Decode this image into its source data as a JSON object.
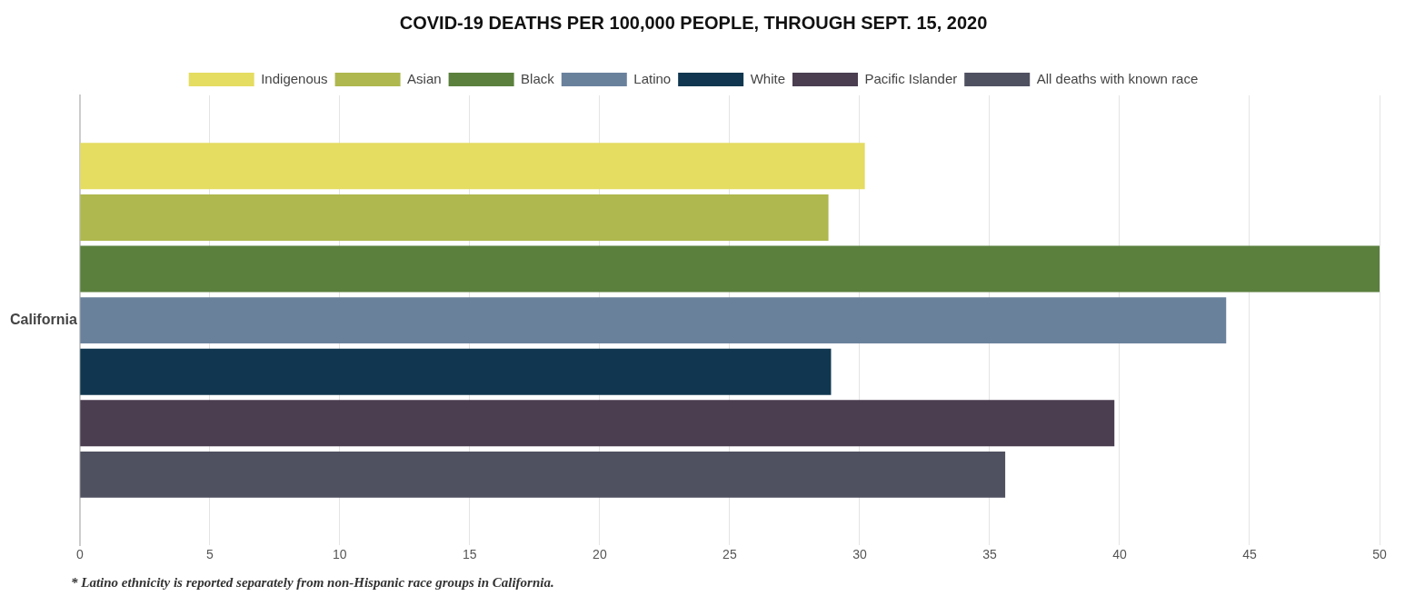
{
  "chart_data": {
    "type": "bar",
    "orientation": "horizontal",
    "title": "COVID-19 DEATHS PER 100,000 PEOPLE, THROUGH SEPT. 15, 2020",
    "categories": [
      "California"
    ],
    "series": [
      {
        "name": "Indigenous",
        "color": "#e5dc62",
        "values": [
          30.2
        ]
      },
      {
        "name": "Asian",
        "color": "#aeb84e",
        "values": [
          28.8
        ]
      },
      {
        "name": "Black",
        "color": "#5b803e",
        "values": [
          50
        ]
      },
      {
        "name": "Latino",
        "color": "#6a819c",
        "values": [
          44.1
        ]
      },
      {
        "name": "White",
        "color": "#10374f",
        "values": [
          28.9
        ]
      },
      {
        "name": "Pacific Islander",
        "color": "#4b3e50",
        "values": [
          39.8
        ]
      },
      {
        "name": "All deaths with known race",
        "color": "#4f5060",
        "values": [
          35.6
        ]
      }
    ],
    "xlim": [
      0,
      50
    ],
    "xticks": [
      0,
      5,
      10,
      15,
      20,
      25,
      30,
      35,
      40,
      45,
      50
    ],
    "grid": "x",
    "legend": "top",
    "annotations": [
      "* Latino ethnicity is reported separately from non-Hispanic race groups in California."
    ]
  }
}
